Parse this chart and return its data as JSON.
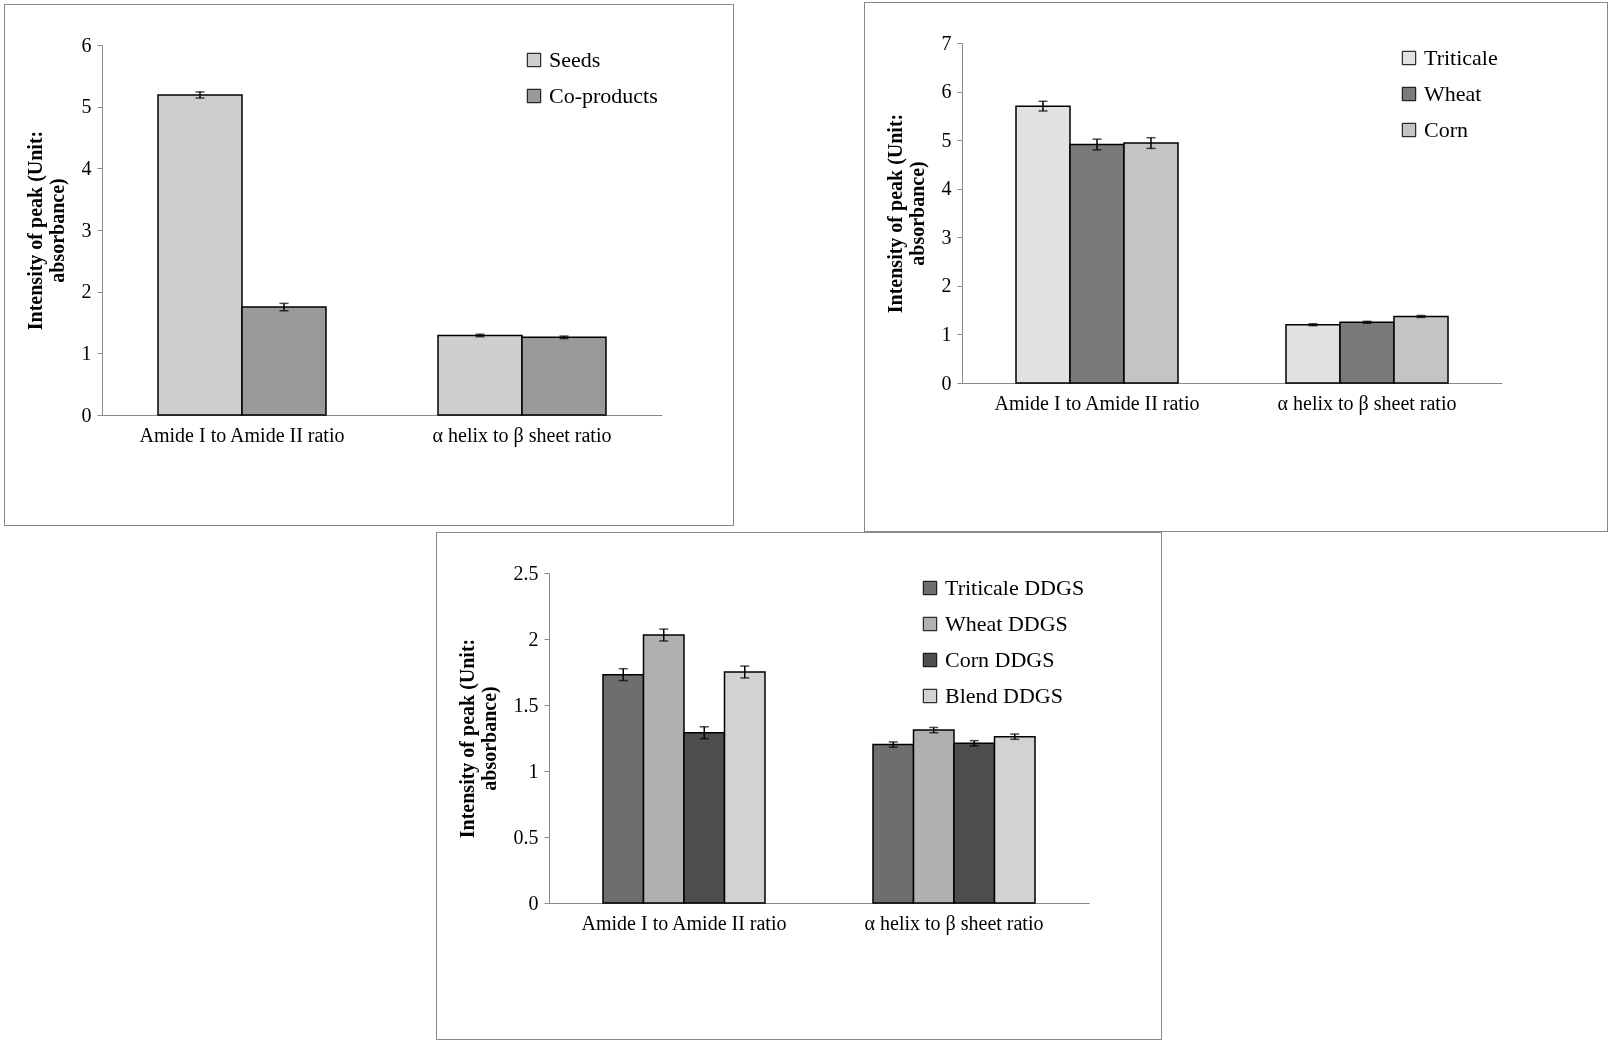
{
  "chart_data": [
    {
      "type": "bar",
      "ylabel": "Intensity of peak (Unit: absorbance)",
      "categories": [
        "Amide I to Amide II ratio",
        "α helix to β sheet ratio"
      ],
      "series": [
        {
          "name": "Seeds",
          "color": "#cfcfcf",
          "values": [
            5.19,
            1.29
          ],
          "errors": [
            0.05,
            0.02
          ]
        },
        {
          "name": "Co-products",
          "color": "#9a9a9a",
          "values": [
            1.75,
            1.26
          ],
          "errors": [
            0.06,
            0.02
          ]
        }
      ],
      "ylim": [
        0,
        6
      ],
      "yticks": [
        0,
        1,
        2,
        3,
        4,
        5,
        6
      ],
      "legend": "top right",
      "grid": false
    },
    {
      "type": "bar",
      "ylabel": "Intensity of peak (Unit: absorbance)",
      "categories": [
        "Amide I to Amide II ratio",
        "α helix to β sheet ratio"
      ],
      "series": [
        {
          "name": "Triticale",
          "color": "#e2e2e2",
          "values": [
            5.7,
            1.2
          ],
          "errors": [
            0.1,
            0.02
          ]
        },
        {
          "name": "Wheat",
          "color": "#7a7a7a",
          "values": [
            4.91,
            1.25
          ],
          "errors": [
            0.11,
            0.02
          ]
        },
        {
          "name": "Corn",
          "color": "#c4c4c4",
          "values": [
            4.94,
            1.37
          ],
          "errors": [
            0.11,
            0.02
          ]
        }
      ],
      "ylim": [
        0,
        7
      ],
      "yticks": [
        0,
        1,
        2,
        3,
        4,
        5,
        6,
        7
      ],
      "legend": "top right",
      "grid": false
    },
    {
      "type": "bar",
      "ylabel": "Intensity of peak (Unit: absorbance)",
      "categories": [
        "Amide I to Amide II ratio",
        "α helix to β sheet ratio"
      ],
      "series": [
        {
          "name": "Triticale DDGS",
          "color": "#6e6e6e",
          "values": [
            1.73,
            1.2
          ],
          "errors": [
            0.045,
            0.02
          ]
        },
        {
          "name": "Wheat DDGS",
          "color": "#b0b0b0",
          "values": [
            2.03,
            1.31
          ],
          "errors": [
            0.045,
            0.02
          ]
        },
        {
          "name": "Corn DDGS",
          "color": "#4e4e4e",
          "values": [
            1.29,
            1.21
          ],
          "errors": [
            0.045,
            0.02
          ]
        },
        {
          "name": "Blend DDGS",
          "color": "#d2d2d2",
          "values": [
            1.75,
            1.26
          ],
          "errors": [
            0.045,
            0.02
          ]
        }
      ],
      "ylim": [
        0,
        2.5
      ],
      "yticks": [
        0,
        0.5,
        1,
        1.5,
        2,
        2.5
      ],
      "legend": "top right",
      "grid": false
    }
  ]
}
